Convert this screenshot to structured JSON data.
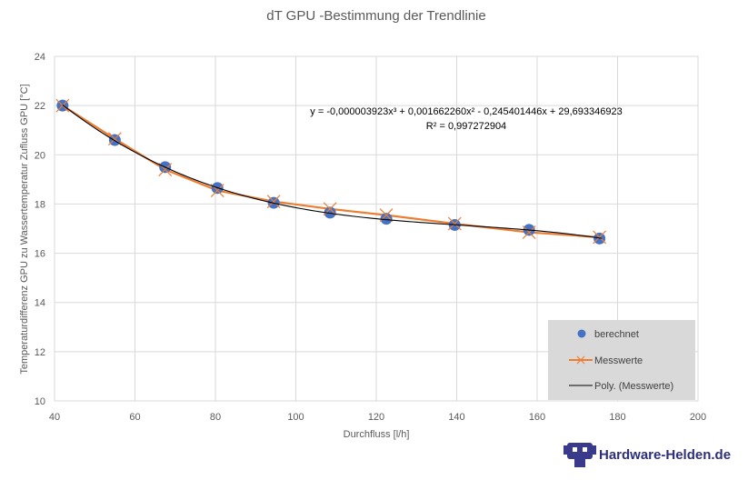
{
  "chart_data": {
    "type": "scatter",
    "title": "dT GPU -Bestimmung der Trendlinie",
    "xlabel": "Durchfluss [l/h]",
    "ylabel": "Temperaturdifferenz GPU zu Wassertemperatur Zufluss GPU [°C]",
    "xlim": [
      40,
      200
    ],
    "ylim": [
      10,
      24
    ],
    "x_ticks": [
      40,
      60,
      80,
      100,
      120,
      140,
      160,
      180,
      200
    ],
    "y_ticks": [
      10,
      12,
      14,
      16,
      18,
      20,
      22,
      24
    ],
    "grid": true,
    "legend_position": "bottom-right",
    "series": [
      {
        "name": "berechnet",
        "kind": "markers",
        "color": "#4472c4",
        "x": [
          42,
          55,
          67.5,
          80.5,
          94.5,
          108.5,
          122.5,
          139.5,
          158,
          175.5
        ],
        "y": [
          22.0,
          20.6,
          19.5,
          18.65,
          18.05,
          17.65,
          17.4,
          17.15,
          16.95,
          16.6
        ]
      },
      {
        "name": "Messwerte",
        "kind": "line-x-markers",
        "color": "#ed7d31",
        "x": [
          42,
          55,
          67.5,
          80.5,
          94.5,
          108.5,
          122.5,
          139.5,
          158,
          175.5
        ],
        "y": [
          22.0,
          20.65,
          19.4,
          18.55,
          18.1,
          17.8,
          17.55,
          17.2,
          16.85,
          16.65
        ]
      },
      {
        "name": "Poly. (Messwerte)",
        "kind": "trendline",
        "color": "#000000",
        "coefficients": [
          29.693346923,
          -0.245401446,
          0.00166226,
          -3.923e-06
        ],
        "x_range": [
          42,
          176
        ]
      }
    ],
    "annotations": {
      "equation": "y = -0,000003923x³ + 0,001662260x² - 0,245401446x + 29,693346923",
      "r_squared": "R² = 0,997272904"
    },
    "legend": {
      "berechnet": "berechnet",
      "messwerte": "Messwerte",
      "poly": "Poly. (Messwerte)"
    }
  },
  "watermark": {
    "logo_text": "Hardware-Helden.de",
    "logo_icon": "robot-logo-icon"
  }
}
